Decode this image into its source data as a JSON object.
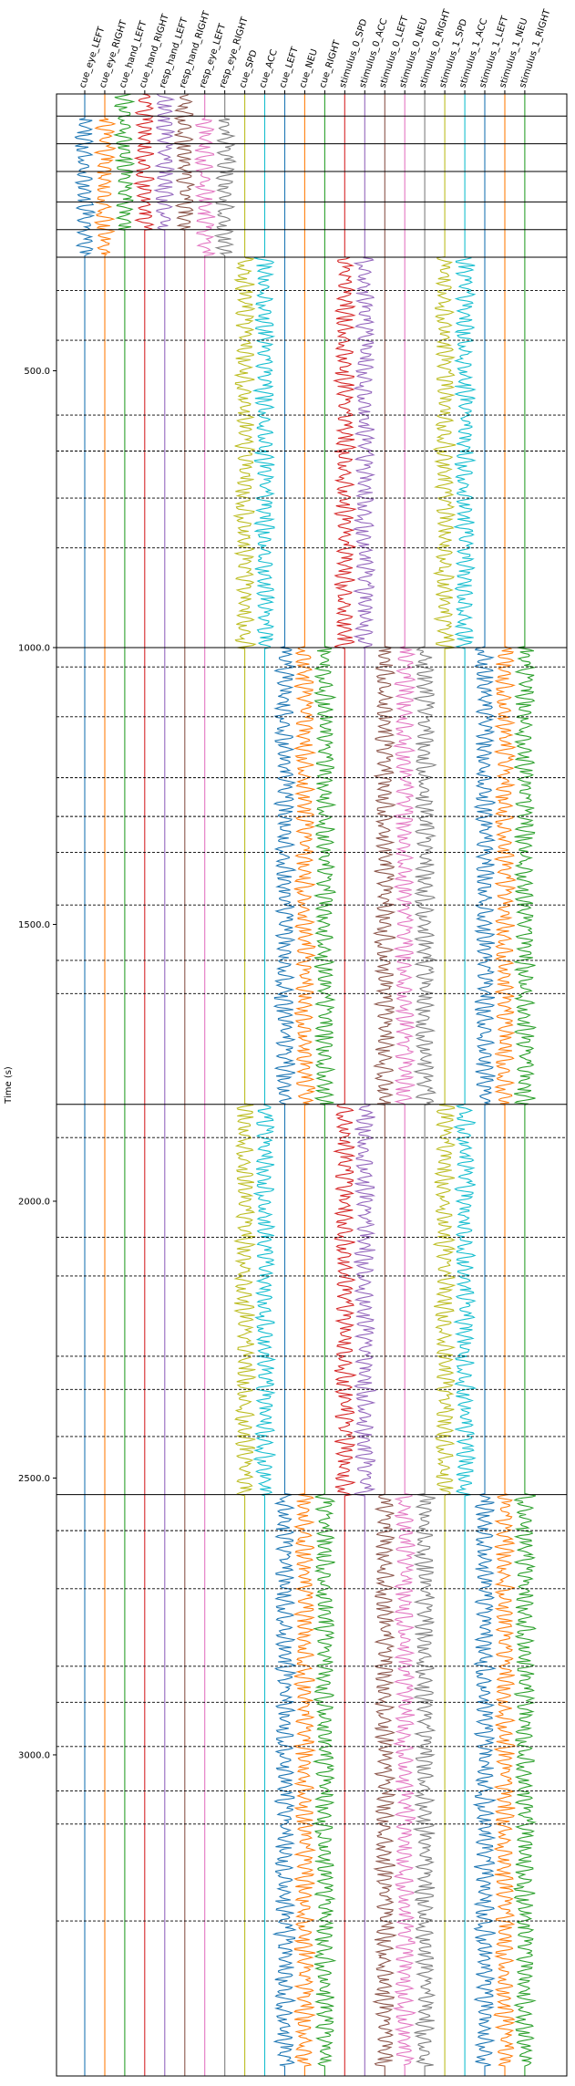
{
  "chart_data": {
    "type": "line",
    "title": "",
    "xlabel": "",
    "ylabel": "Time (s)",
    "ylim": [
      3580,
      0
    ],
    "y_inverted": true,
    "yticks": [
      500.0,
      1000.0,
      1500.0,
      2000.0,
      2500.0,
      3000.0
    ],
    "ytick_labels": [
      "500.0",
      "1000.0",
      "1500.0",
      "2000.0",
      "2500.0",
      "3000.0"
    ],
    "channels": [
      {
        "name": "cue_eye_LEFT",
        "color": "#1f77b4"
      },
      {
        "name": "cue_eye_RIGHT",
        "color": "#ff7f0e"
      },
      {
        "name": "cue_hand_LEFT",
        "color": "#2ca02c"
      },
      {
        "name": "cue_hand_RIGHT",
        "color": "#d62728"
      },
      {
        "name": "resp_hand_LEFT",
        "color": "#9467bd"
      },
      {
        "name": "resp_hand_RIGHT",
        "color": "#8c564b"
      },
      {
        "name": "resp_eye_LEFT",
        "color": "#e377c2"
      },
      {
        "name": "resp_eye_RIGHT",
        "color": "#7f7f7f"
      },
      {
        "name": "cue_SPD",
        "color": "#bcbd22"
      },
      {
        "name": "cue_ACC",
        "color": "#17becf"
      },
      {
        "name": "cue_LEFT",
        "color": "#1f77b4"
      },
      {
        "name": "cue_NEU",
        "color": "#ff7f0e"
      },
      {
        "name": "cue_RIGHT",
        "color": "#2ca02c"
      },
      {
        "name": "stimulus_0_SPD",
        "color": "#d62728"
      },
      {
        "name": "stimulus_0_ACC",
        "color": "#9467bd"
      },
      {
        "name": "stimulus_0_LEFT",
        "color": "#8c564b"
      },
      {
        "name": "stimulus_0_NEU",
        "color": "#e377c2"
      },
      {
        "name": "stimulus_0_RIGHT",
        "color": "#7f7f7f"
      },
      {
        "name": "stimulus_1_SPD",
        "color": "#bcbd22"
      },
      {
        "name": "stimulus_1_ACC",
        "color": "#17becf"
      },
      {
        "name": "stimulus_1_LEFT",
        "color": "#1f77b4"
      },
      {
        "name": "stimulus_1_NEU",
        "color": "#ff7f0e"
      },
      {
        "name": "stimulus_1_RIGHT",
        "color": "#2ca02c"
      }
    ],
    "block_boundaries": [
      0,
      40,
      90,
      140,
      195,
      245,
      295,
      1000,
      1825,
      2530
    ],
    "trial_boundaries": [
      355,
      445,
      580,
      645,
      730,
      820,
      1035,
      1125,
      1235,
      1305,
      1370,
      1465,
      1565,
      1625,
      1885,
      2065,
      2135,
      2280,
      2340,
      2425,
      2595,
      2700,
      2840,
      2905,
      2985,
      3065,
      3125,
      3300
    ],
    "activity_segments": [
      {
        "channel": "cue_eye_LEFT",
        "start": 45,
        "end": 290
      },
      {
        "channel": "cue_eye_RIGHT",
        "start": 45,
        "end": 290
      },
      {
        "channel": "cue_hand_LEFT",
        "start": 0,
        "end": 245
      },
      {
        "channel": "cue_hand_RIGHT",
        "start": 0,
        "end": 245
      },
      {
        "channel": "resp_hand_LEFT",
        "start": 0,
        "end": 245
      },
      {
        "channel": "resp_hand_RIGHT",
        "start": 0,
        "end": 245
      },
      {
        "channel": "resp_eye_LEFT",
        "start": 45,
        "end": 290
      },
      {
        "channel": "resp_eye_RIGHT",
        "start": 45,
        "end": 290
      },
      {
        "channel": "cue_SPD",
        "start": 295,
        "end": 1000
      },
      {
        "channel": "cue_SPD",
        "start": 1825,
        "end": 2530
      },
      {
        "channel": "cue_ACC",
        "start": 295,
        "end": 1000
      },
      {
        "channel": "cue_ACC",
        "start": 1825,
        "end": 2530
      },
      {
        "channel": "cue_LEFT",
        "start": 1000,
        "end": 1825
      },
      {
        "channel": "cue_LEFT",
        "start": 2530,
        "end": 3560
      },
      {
        "channel": "cue_NEU",
        "start": 1000,
        "end": 1825
      },
      {
        "channel": "cue_NEU",
        "start": 2530,
        "end": 3560
      },
      {
        "channel": "cue_RIGHT",
        "start": 1000,
        "end": 1825
      },
      {
        "channel": "cue_RIGHT",
        "start": 2530,
        "end": 3560
      },
      {
        "channel": "stimulus_0_SPD",
        "start": 295,
        "end": 1000
      },
      {
        "channel": "stimulus_0_SPD",
        "start": 1825,
        "end": 2530
      },
      {
        "channel": "stimulus_0_ACC",
        "start": 295,
        "end": 1000
      },
      {
        "channel": "stimulus_0_ACC",
        "start": 1825,
        "end": 2530
      },
      {
        "channel": "stimulus_0_LEFT",
        "start": 1000,
        "end": 1825
      },
      {
        "channel": "stimulus_0_LEFT",
        "start": 2530,
        "end": 3560
      },
      {
        "channel": "stimulus_0_NEU",
        "start": 1000,
        "end": 1825
      },
      {
        "channel": "stimulus_0_NEU",
        "start": 2530,
        "end": 3560
      },
      {
        "channel": "stimulus_0_RIGHT",
        "start": 1000,
        "end": 1825
      },
      {
        "channel": "stimulus_0_RIGHT",
        "start": 2530,
        "end": 3560
      },
      {
        "channel": "stimulus_1_SPD",
        "start": 295,
        "end": 1000
      },
      {
        "channel": "stimulus_1_SPD",
        "start": 1825,
        "end": 2530
      },
      {
        "channel": "stimulus_1_ACC",
        "start": 295,
        "end": 1000
      },
      {
        "channel": "stimulus_1_ACC",
        "start": 1825,
        "end": 2530
      },
      {
        "channel": "stimulus_1_LEFT",
        "start": 1000,
        "end": 1825
      },
      {
        "channel": "stimulus_1_LEFT",
        "start": 2530,
        "end": 3560
      },
      {
        "channel": "stimulus_1_NEU",
        "start": 1000,
        "end": 1825
      },
      {
        "channel": "stimulus_1_NEU",
        "start": 2530,
        "end": 3560
      },
      {
        "channel": "stimulus_1_RIGHT",
        "start": 1000,
        "end": 1825
      },
      {
        "channel": "stimulus_1_RIGHT",
        "start": 2530,
        "end": 3560
      }
    ],
    "grid": false,
    "legend": "none"
  }
}
